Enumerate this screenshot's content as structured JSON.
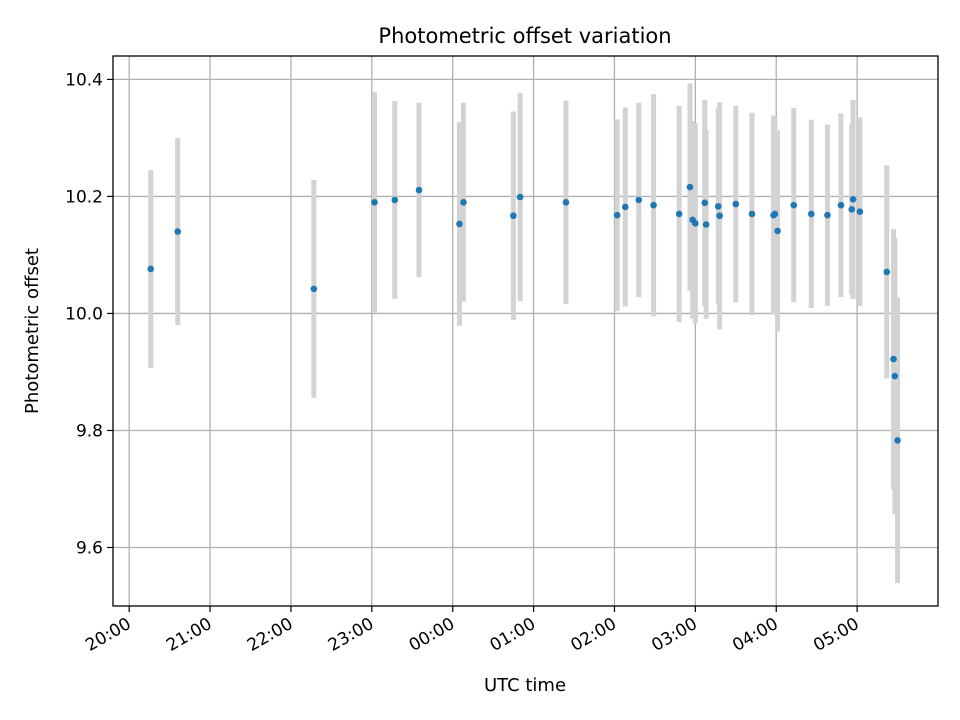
{
  "chart_data": {
    "type": "scatter",
    "title": "Photometric offset variation",
    "xlabel": "UTC time",
    "ylabel": "Photometric offset",
    "grid": true,
    "x_ticks": [
      "20:00",
      "21:00",
      "22:00",
      "23:00",
      "00:00",
      "01:00",
      "02:00",
      "03:00",
      "04:00",
      "05:00"
    ],
    "y_ticks": [
      "9.6",
      "9.8",
      "10.0",
      "10.2",
      "10.4"
    ],
    "ylim": [
      9.5,
      10.44
    ],
    "xlim": [
      "19:48",
      "06:00"
    ],
    "colors": {
      "marker": "#1f77b4",
      "errorbar": "#d3d3d3",
      "grid": "#b0b0b0"
    },
    "points": [
      {
        "x": "20:16",
        "y": 10.076,
        "yerr": 0.169
      },
      {
        "x": "20:36",
        "y": 10.14,
        "yerr": 0.16
      },
      {
        "x": "22:17",
        "y": 10.042,
        "yerr": 0.186
      },
      {
        "x": "23:02",
        "y": 10.19,
        "yerr": 0.188
      },
      {
        "x": "23:17",
        "y": 10.194,
        "yerr": 0.169
      },
      {
        "x": "23:35",
        "y": 10.211,
        "yerr": 0.149
      },
      {
        "x": "00:05",
        "y": 10.153,
        "yerr": 0.174
      },
      {
        "x": "00:08",
        "y": 10.19,
        "yerr": 0.17
      },
      {
        "x": "00:45",
        "y": 10.167,
        "yerr": 0.178
      },
      {
        "x": "00:50",
        "y": 10.199,
        "yerr": 0.178
      },
      {
        "x": "01:24",
        "y": 10.19,
        "yerr": 0.174
      },
      {
        "x": "02:02",
        "y": 10.168,
        "yerr": 0.164
      },
      {
        "x": "02:08",
        "y": 10.182,
        "yerr": 0.17
      },
      {
        "x": "02:18",
        "y": 10.194,
        "yerr": 0.166
      },
      {
        "x": "02:29",
        "y": 10.185,
        "yerr": 0.19
      },
      {
        "x": "02:48",
        "y": 10.17,
        "yerr": 0.185
      },
      {
        "x": "02:56",
        "y": 10.216,
        "yerr": 0.177
      },
      {
        "x": "02:58",
        "y": 10.16,
        "yerr": 0.169
      },
      {
        "x": "03:00",
        "y": 10.154,
        "yerr": 0.171
      },
      {
        "x": "03:07",
        "y": 10.189,
        "yerr": 0.176
      },
      {
        "x": "03:08",
        "y": 10.152,
        "yerr": 0.161
      },
      {
        "x": "03:17",
        "y": 10.183,
        "yerr": 0.168
      },
      {
        "x": "03:18",
        "y": 10.167,
        "yerr": 0.194
      },
      {
        "x": "03:30",
        "y": 10.187,
        "yerr": 0.168
      },
      {
        "x": "03:42",
        "y": 10.17,
        "yerr": 0.173
      },
      {
        "x": "03:58",
        "y": 10.168,
        "yerr": 0.17
      },
      {
        "x": "03:59",
        "y": 10.17,
        "yerr": 0.165
      },
      {
        "x": "04:01",
        "y": 10.141,
        "yerr": 0.172
      },
      {
        "x": "04:13",
        "y": 10.185,
        "yerr": 0.166
      },
      {
        "x": "04:26",
        "y": 10.17,
        "yerr": 0.161
      },
      {
        "x": "04:38",
        "y": 10.168,
        "yerr": 0.155
      },
      {
        "x": "04:48",
        "y": 10.185,
        "yerr": 0.157
      },
      {
        "x": "04:56",
        "y": 10.178,
        "yerr": 0.146
      },
      {
        "x": "04:57",
        "y": 10.195,
        "yerr": 0.17
      },
      {
        "x": "05:02",
        "y": 10.174,
        "yerr": 0.161
      },
      {
        "x": "05:22",
        "y": 10.071,
        "yerr": 0.182
      },
      {
        "x": "05:27",
        "y": 9.922,
        "yerr": 0.222
      },
      {
        "x": "05:28",
        "y": 9.893,
        "yerr": 0.236
      },
      {
        "x": "05:30",
        "y": 9.783,
        "yerr": 0.244
      }
    ]
  }
}
